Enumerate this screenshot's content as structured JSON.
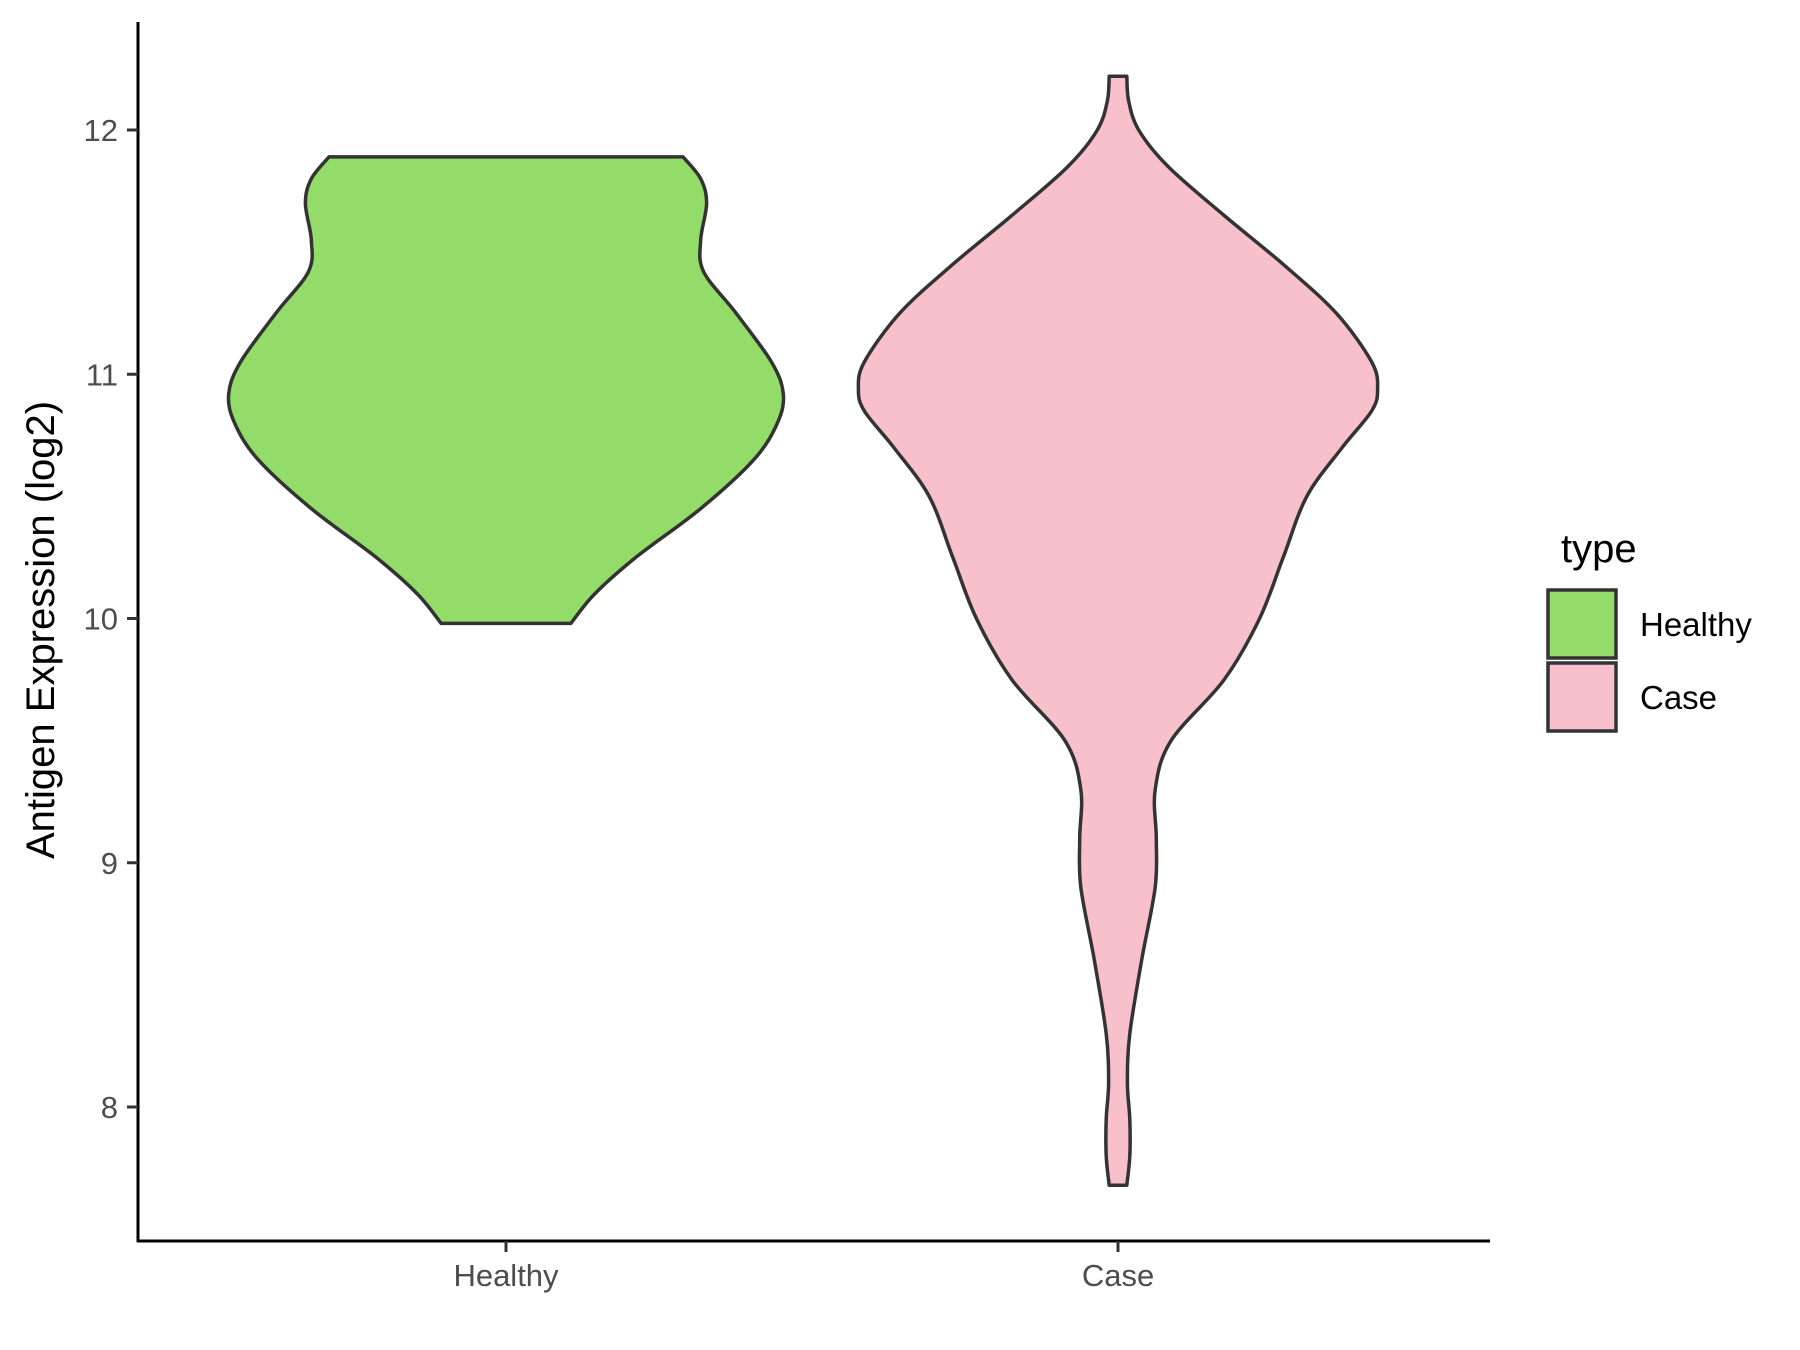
{
  "chart_data": {
    "type": "violin",
    "title": "",
    "xlabel": "",
    "ylabel": "Antigen Expression (log2)",
    "ylim": [
      7.45,
      12.45
    ],
    "yticks": [
      8,
      9,
      10,
      11,
      12
    ],
    "categories": [
      "Healthy",
      "Case"
    ],
    "grid": false,
    "legend": {
      "title": "type",
      "position": "right",
      "entries": [
        {
          "label": "Healthy",
          "color": "#93dc6a"
        },
        {
          "label": "Case",
          "color": "#f8c0cb"
        }
      ]
    },
    "series": [
      {
        "category": "Healthy",
        "color": "#93dc6a",
        "min": 9.98,
        "max": 11.89,
        "half_width": [
          [
            9.98,
            0.11
          ],
          [
            10.1,
            0.15
          ],
          [
            10.25,
            0.22
          ],
          [
            10.45,
            0.33
          ],
          [
            10.65,
            0.42
          ],
          [
            10.8,
            0.46
          ],
          [
            10.92,
            0.47
          ],
          [
            11.05,
            0.45
          ],
          [
            11.25,
            0.39
          ],
          [
            11.42,
            0.335
          ],
          [
            11.55,
            0.33
          ],
          [
            11.7,
            0.34
          ],
          [
            11.8,
            0.33
          ],
          [
            11.89,
            0.3
          ]
        ]
      },
      {
        "category": "Case",
        "color": "#f8c0cb",
        "min": 7.68,
        "max": 12.22,
        "half_width": [
          [
            7.68,
            0.015
          ],
          [
            7.8,
            0.02
          ],
          [
            7.95,
            0.02
          ],
          [
            8.1,
            0.016
          ],
          [
            8.3,
            0.02
          ],
          [
            8.6,
            0.04
          ],
          [
            8.9,
            0.063
          ],
          [
            9.1,
            0.065
          ],
          [
            9.3,
            0.063
          ],
          [
            9.5,
            0.09
          ],
          [
            9.75,
            0.18
          ],
          [
            10.0,
            0.24
          ],
          [
            10.25,
            0.28
          ],
          [
            10.5,
            0.32
          ],
          [
            10.7,
            0.38
          ],
          [
            10.85,
            0.43
          ],
          [
            10.94,
            0.44
          ],
          [
            11.05,
            0.43
          ],
          [
            11.25,
            0.37
          ],
          [
            11.45,
            0.28
          ],
          [
            11.65,
            0.18
          ],
          [
            11.85,
            0.085
          ],
          [
            12.0,
            0.035
          ],
          [
            12.12,
            0.018
          ],
          [
            12.22,
            0.015
          ]
        ]
      }
    ]
  }
}
